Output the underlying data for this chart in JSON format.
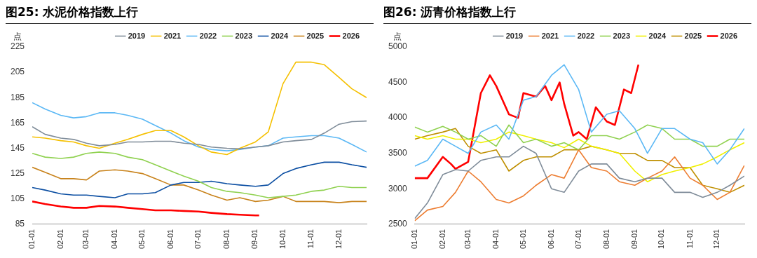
{
  "chart_data": [
    {
      "type": "line",
      "title": "图25: 水泥价格指数上行",
      "ylabel": "点",
      "legend": "top",
      "marker": "none",
      "line_style": "solid",
      "grid": false,
      "x": [
        "--01-01",
        "--01-15",
        "--02-01",
        "--02-15",
        "--03-01",
        "--03-15",
        "--04-01",
        "--04-15",
        "--05-01",
        "--05-15",
        "--06-01",
        "--06-15",
        "--07-01",
        "--07-15",
        "--08-01",
        "--08-15",
        "--09-01",
        "--09-15",
        "--10-01",
        "--10-15",
        "--11-01",
        "--11-15",
        "--12-01",
        "--12-15",
        "--12-31"
      ],
      "xlim": [
        "--01-01",
        "--12-31"
      ],
      "xticks": [
        {
          "value": "--01-01",
          "label": "01-01"
        },
        {
          "value": "--02-01",
          "label": "02-01"
        },
        {
          "value": "--03-01",
          "label": "03-01"
        },
        {
          "value": "--04-01",
          "label": "04-01"
        },
        {
          "value": "--05-01",
          "label": "05-01"
        },
        {
          "value": "--06-01",
          "label": "06-01"
        },
        {
          "value": "--07-01",
          "label": "07-01"
        },
        {
          "value": "--08-01",
          "label": "08-01"
        },
        {
          "value": "--09-01",
          "label": "09-01"
        },
        {
          "value": "--10-01",
          "label": "10-01"
        },
        {
          "value": "--11-01",
          "label": "11-01"
        },
        {
          "value": "--12-01",
          "label": "12-01"
        }
      ],
      "ylim": [
        85,
        225
      ],
      "yticks": [
        85,
        105,
        125,
        145,
        165,
        185,
        205,
        225
      ],
      "series": [
        {
          "name": "2019",
          "color": "#7f8c99",
          "values": [
            162,
            156,
            153,
            152,
            149,
            147,
            148,
            150,
            150,
            150.5,
            150.5,
            149,
            148,
            146,
            145,
            144.5,
            146,
            147,
            150,
            151,
            152,
            157,
            164,
            166,
            166.5
          ]
        },
        {
          "name": "2021",
          "color": "#f5c000",
          "values": [
            154,
            153,
            151,
            150,
            147,
            145,
            149,
            152,
            156,
            159,
            159,
            154,
            147,
            142,
            140,
            145,
            150,
            158,
            196,
            213,
            213,
            211,
            201,
            192,
            185
          ]
        },
        {
          "name": "2022",
          "color": "#5bb8f5",
          "values": [
            181,
            176,
            171,
            169,
            170,
            173,
            173,
            171,
            168,
            163,
            157,
            151,
            146,
            144,
            143,
            144,
            146,
            147,
            153,
            154,
            155,
            155,
            153,
            148,
            142
          ]
        },
        {
          "name": "2023",
          "color": "#8fd14f",
          "values": [
            141,
            138,
            137,
            138,
            141,
            142,
            141,
            138,
            136,
            132,
            127,
            123,
            119,
            114,
            111,
            110,
            108,
            106,
            107,
            108,
            111,
            112,
            115,
            114,
            114
          ]
        },
        {
          "name": "2024",
          "color": "#0b4ea2",
          "values": [
            114,
            112,
            109,
            108,
            108,
            107,
            106,
            109,
            109,
            110,
            116,
            118,
            118,
            119,
            117,
            116,
            115,
            116,
            125,
            129,
            132,
            134,
            134,
            132,
            130
          ]
        },
        {
          "name": "2025",
          "color": "#c8821a",
          "values": [
            130,
            126,
            121,
            121,
            120,
            127,
            128,
            127,
            125,
            121,
            116,
            116,
            112,
            108,
            104,
            106,
            103,
            104,
            107,
            103,
            103,
            103,
            102,
            103,
            103
          ]
        },
        {
          "name": "2026",
          "color": "#ff0000",
          "x": [
            "--01-01",
            "--01-15",
            "--02-01",
            "--02-15",
            "--03-01",
            "--03-15",
            "--04-01",
            "--04-15",
            "--05-01",
            "--05-15",
            "--06-01",
            "--06-15",
            "--07-01",
            "--07-15",
            "--08-01",
            "--08-15",
            "--09-01",
            "--09-05"
          ],
          "values": [
            103,
            101,
            99,
            98,
            98,
            99.5,
            99,
            98,
            97,
            96,
            96,
            95.5,
            95,
            94,
            93,
            92.5,
            92,
            92
          ]
        }
      ]
    },
    {
      "type": "line",
      "title": "图26: 沥青价格指数上行",
      "ylabel": "点",
      "legend": "top",
      "marker": "none",
      "line_style": "solid",
      "grid": false,
      "x": [
        "--01-01",
        "--01-15",
        "--02-01",
        "--02-15",
        "--03-01",
        "--03-15",
        "--04-01",
        "--04-15",
        "--05-01",
        "--05-15",
        "--06-01",
        "--06-15",
        "--07-01",
        "--07-15",
        "--08-01",
        "--08-15",
        "--09-01",
        "--09-15",
        "--10-01",
        "--10-15",
        "--11-01",
        "--11-15",
        "--12-01",
        "--12-15",
        "--12-31"
      ],
      "xlim": [
        "--01-01",
        "--12-31"
      ],
      "xticks": [
        {
          "value": "--01-01",
          "label": "01-01"
        },
        {
          "value": "--02-01",
          "label": "02-01"
        },
        {
          "value": "--03-01",
          "label": "03-01"
        },
        {
          "value": "--04-01",
          "label": "04-01"
        },
        {
          "value": "--05-01",
          "label": "05-01"
        },
        {
          "value": "--06-01",
          "label": "06-01"
        },
        {
          "value": "--07-01",
          "label": "07-01"
        },
        {
          "value": "--08-01",
          "label": "08-01"
        },
        {
          "value": "--09-01",
          "label": "09-01"
        },
        {
          "value": "--10-01",
          "label": "10-01"
        },
        {
          "value": "--11-01",
          "label": "11-01"
        },
        {
          "value": "--12-01",
          "label": "12-01"
        }
      ],
      "ylim": [
        2500,
        5000
      ],
      "yticks": [
        2500,
        3000,
        3500,
        4000,
        4500,
        5000
      ],
      "series": [
        {
          "name": "2019",
          "color": "#7f8c99",
          "values": [
            2580,
            2800,
            3200,
            3270,
            3250,
            3400,
            3450,
            3450,
            3600,
            3500,
            3000,
            2950,
            3250,
            3350,
            3350,
            3150,
            3100,
            3150,
            3150,
            2950,
            2950,
            2880,
            2950,
            3050,
            3180
          ]
        },
        {
          "name": "2021",
          "color": "#ed7d31",
          "values": [
            2550,
            2700,
            2750,
            2950,
            3250,
            3100,
            2850,
            2800,
            2900,
            3050,
            3200,
            3150,
            3550,
            3300,
            3250,
            3100,
            3050,
            3150,
            3250,
            3450,
            3150,
            3050,
            2850,
            2950,
            3330
          ]
        },
        {
          "name": "2022",
          "color": "#5bb8f5",
          "values": [
            3320,
            3400,
            3700,
            3600,
            3500,
            3800,
            3900,
            3700,
            4250,
            4300,
            4600,
            4750,
            4400,
            3800,
            4050,
            4100,
            3850,
            3500,
            3850,
            3850,
            3700,
            3650,
            3350,
            3550,
            3850
          ]
        },
        {
          "name": "2023",
          "color": "#8fd14f",
          "values": [
            3870,
            3800,
            3880,
            3800,
            3700,
            3750,
            3600,
            3900,
            3650,
            3700,
            3600,
            3650,
            3550,
            3750,
            3750,
            3700,
            3800,
            3900,
            3850,
            3700,
            3700,
            3600,
            3600,
            3700,
            3700
          ]
        },
        {
          "name": "2024",
          "color": "#f0f000",
          "values": [
            3750,
            3700,
            3750,
            3700,
            3700,
            3650,
            3700,
            3800,
            3750,
            3700,
            3650,
            3580,
            3700,
            3600,
            3550,
            3500,
            3250,
            3100,
            3200,
            3250,
            3300,
            3350,
            3450,
            3550,
            3650
          ]
        },
        {
          "name": "2025",
          "color": "#bf8f00",
          "values": [
            3700,
            3750,
            3800,
            3850,
            3600,
            3500,
            3550,
            3250,
            3400,
            3450,
            3450,
            3550,
            3550,
            3600,
            3550,
            3500,
            3500,
            3400,
            3400,
            3300,
            3300,
            3050,
            3000,
            2950,
            3050
          ]
        },
        {
          "name": "2026",
          "color": "#ff0000",
          "x": [
            "--01-01",
            "--01-15",
            "--02-01",
            "--02-10",
            "--02-15",
            "--03-01",
            "--03-15",
            "--03-25",
            "--04-01",
            "--04-15",
            "--04-25",
            "--05-01",
            "--05-15",
            "--05-25",
            "--06-01",
            "--06-10",
            "--06-15",
            "--06-25",
            "--07-01",
            "--07-10",
            "--07-20",
            "--08-01",
            "--08-10",
            "--08-20",
            "--08-28",
            "--09-05"
          ],
          "values": [
            3150,
            3150,
            3450,
            3350,
            3280,
            3380,
            4350,
            4600,
            4450,
            4050,
            4000,
            4350,
            4300,
            4450,
            4250,
            4500,
            4200,
            3750,
            3800,
            3700,
            4150,
            3950,
            3900,
            4400,
            4350,
            4750
          ]
        }
      ]
    }
  ]
}
